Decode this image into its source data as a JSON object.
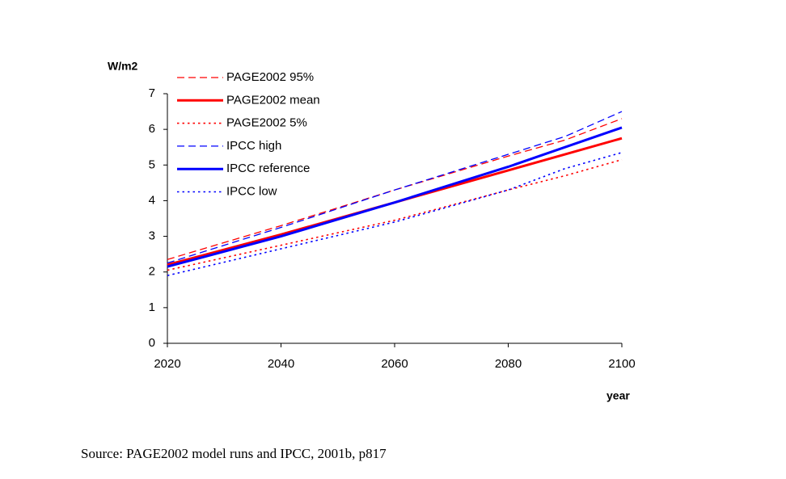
{
  "chart_data": {
    "type": "line",
    "y_label": "W/m2",
    "x_label": "year",
    "source": "Source: PAGE2002 model runs and IPCC, 2001b, p817",
    "x": [
      2020,
      2040,
      2060,
      2080,
      2090,
      2100
    ],
    "xlim": [
      2020,
      2100
    ],
    "xticks": [
      2020,
      2040,
      2060,
      2080,
      2100
    ],
    "ylim": [
      0,
      7
    ],
    "yticks": [
      0,
      1,
      2,
      3,
      4,
      5,
      6,
      7
    ],
    "grid": false,
    "legend": "upper left",
    "series": [
      {
        "name": "PAGE2002 95%",
        "color": "#ff0000",
        "dash": "dashed",
        "values": [
          2.35,
          3.3,
          4.3,
          5.25,
          5.7,
          6.3
        ]
      },
      {
        "name": "PAGE2002 mean",
        "color": "#ff0000",
        "dash": "solid",
        "values": [
          2.2,
          3.05,
          3.95,
          4.85,
          5.3,
          5.75
        ]
      },
      {
        "name": "PAGE2002 5%",
        "color": "#ff0000",
        "dash": "dotted",
        "values": [
          2.05,
          2.75,
          3.45,
          4.3,
          4.7,
          5.15
        ]
      },
      {
        "name": "IPCC high",
        "color": "#0000ff",
        "dash": "dashed",
        "values": [
          2.25,
          3.25,
          4.3,
          5.3,
          5.8,
          6.5
        ]
      },
      {
        "name": "IPCC reference",
        "color": "#0000ff",
        "dash": "solid",
        "values": [
          2.15,
          3.0,
          3.95,
          4.95,
          5.5,
          6.05
        ]
      },
      {
        "name": "IPCC low",
        "color": "#0000ff",
        "dash": "dotted",
        "values": [
          1.9,
          2.65,
          3.4,
          4.3,
          4.9,
          5.35
        ]
      }
    ]
  }
}
